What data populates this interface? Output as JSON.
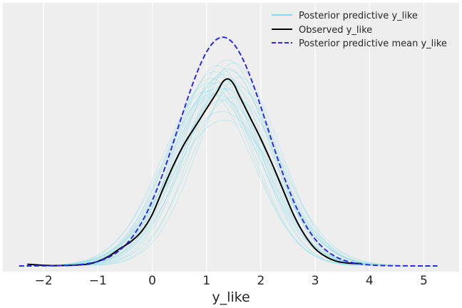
{
  "chart_data": {
    "type": "line",
    "title": "",
    "xlabel": "y_like",
    "ylabel": "",
    "xlim": [
      -2.75,
      5.65
    ],
    "ylim": [
      -0.01,
      0.46
    ],
    "x_ticks": [
      -2,
      -1,
      0,
      1,
      2,
      3,
      4,
      5
    ],
    "x_tick_labels": [
      "−2",
      "−1",
      "0",
      "1",
      "2",
      "3",
      "4",
      "5"
    ],
    "grid": true,
    "legend_position": "top-right",
    "background": "#eeeeee",
    "series": [
      {
        "name": "Posterior predictive y_like",
        "color": "#7fdce8",
        "style": "solid",
        "draws": [
          {
            "mu": 1.3,
            "sd": 0.8,
            "peak": 0.335
          },
          {
            "mu": 1.2,
            "sd": 0.85,
            "peak": 0.32
          },
          {
            "mu": 1.4,
            "sd": 0.78,
            "peak": 0.345
          },
          {
            "mu": 1.1,
            "sd": 0.9,
            "peak": 0.3
          },
          {
            "mu": 1.5,
            "sd": 0.75,
            "peak": 0.355
          },
          {
            "mu": 1.25,
            "sd": 0.82,
            "peak": 0.33
          },
          {
            "mu": 1.35,
            "sd": 0.88,
            "peak": 0.31
          },
          {
            "mu": 1.15,
            "sd": 0.78,
            "peak": 0.34
          },
          {
            "mu": 1.45,
            "sd": 0.84,
            "peak": 0.325
          },
          {
            "mu": 1.05,
            "sd": 0.8,
            "peak": 0.32
          },
          {
            "mu": 1.55,
            "sd": 0.82,
            "peak": 0.315
          },
          {
            "mu": 1.3,
            "sd": 0.92,
            "peak": 0.29
          },
          {
            "mu": 1.2,
            "sd": 0.76,
            "peak": 0.35
          },
          {
            "mu": 1.4,
            "sd": 0.86,
            "peak": 0.318
          },
          {
            "mu": 1.0,
            "sd": 0.84,
            "peak": 0.305
          },
          {
            "mu": 1.6,
            "sd": 0.78,
            "peak": 0.33
          },
          {
            "mu": 1.28,
            "sd": 0.95,
            "peak": 0.27
          },
          {
            "mu": 1.18,
            "sd": 0.88,
            "peak": 0.3
          },
          {
            "mu": 1.38,
            "sd": 0.8,
            "peak": 0.36
          },
          {
            "mu": 1.22,
            "sd": 0.82,
            "peak": 0.312
          },
          {
            "mu": 1.48,
            "sd": 0.9,
            "peak": 0.295
          },
          {
            "mu": 1.08,
            "sd": 0.79,
            "peak": 0.328
          },
          {
            "mu": 1.33,
            "sd": 0.98,
            "peak": 0.255
          },
          {
            "mu": 1.42,
            "sd": 0.77,
            "peak": 0.342
          },
          {
            "mu": 1.12,
            "sd": 0.86,
            "peak": 0.308
          }
        ]
      },
      {
        "name": "Observed y_like",
        "color": "#000000",
        "style": "solid",
        "x": [
          -2.3,
          -2.0,
          -1.8,
          -1.5,
          -1.2,
          -1.0,
          -0.8,
          -0.6,
          -0.4,
          -0.2,
          0.0,
          0.2,
          0.4,
          0.6,
          0.8,
          1.0,
          1.1,
          1.2,
          1.3,
          1.4,
          1.5,
          1.6,
          1.8,
          2.0,
          2.2,
          2.4,
          2.6,
          2.8,
          3.0,
          3.2,
          3.4,
          3.6,
          3.85
        ],
        "y": [
          0.003,
          0.001,
          0.0005,
          0.001,
          0.003,
          0.008,
          0.017,
          0.03,
          0.042,
          0.06,
          0.09,
          0.135,
          0.178,
          0.215,
          0.245,
          0.275,
          0.29,
          0.305,
          0.322,
          0.327,
          0.318,
          0.298,
          0.26,
          0.222,
          0.18,
          0.135,
          0.09,
          0.055,
          0.03,
          0.016,
          0.008,
          0.005,
          0.004
        ]
      },
      {
        "name": "Posterior predictive mean y_like",
        "color": "#2a2aee",
        "style": "dashed",
        "x_range": [
          -2.45,
          5.25
        ],
        "mu": 1.3,
        "sd": 0.82,
        "peak": 0.4
      }
    ]
  }
}
